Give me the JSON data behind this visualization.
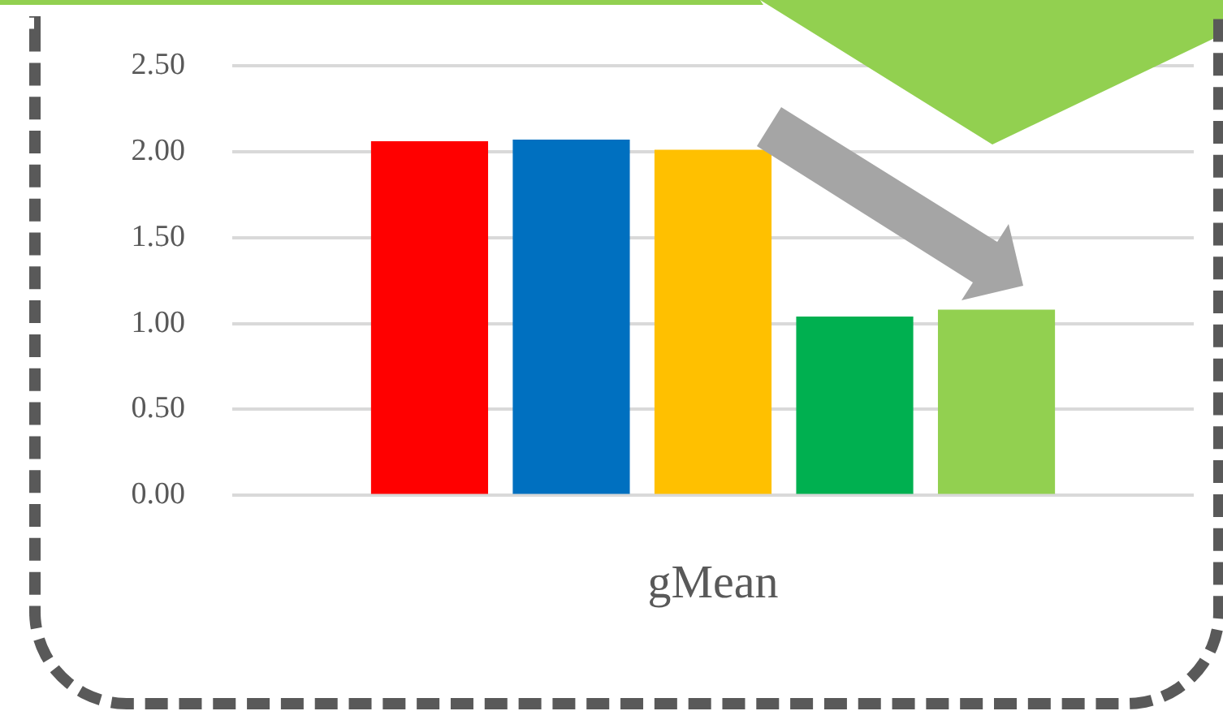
{
  "chart_data": {
    "type": "bar",
    "categories": [
      "gMean"
    ],
    "series": [
      {
        "color": "#ff0000",
        "values": [
          2.06
        ]
      },
      {
        "color": "#0070c0",
        "values": [
          2.07
        ]
      },
      {
        "color": "#ffc000",
        "values": [
          2.01
        ]
      },
      {
        "color": "#00b050",
        "values": [
          1.04
        ]
      },
      {
        "color": "#92d050",
        "values": [
          1.08
        ]
      }
    ],
    "ylim": [
      0,
      2.5
    ],
    "yticks": [
      {
        "value": 0,
        "label": "0.00"
      },
      {
        "value": 0.5,
        "label": "0.50"
      },
      {
        "value": 1,
        "label": "1.00"
      },
      {
        "value": 1.5,
        "label": "1.50"
      },
      {
        "value": 2,
        "label": "2.00"
      },
      {
        "value": 2.5,
        "label": "2.50"
      }
    ],
    "grid": "y"
  }
}
